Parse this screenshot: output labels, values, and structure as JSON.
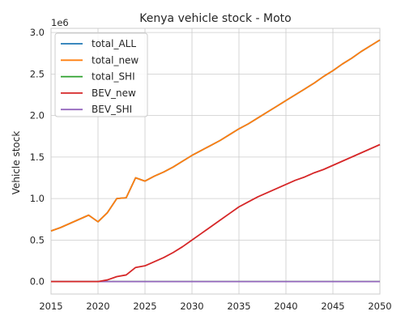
{
  "chart_data": {
    "type": "line",
    "title": "Kenya vehicle stock - Moto",
    "xlabel": "",
    "ylabel": "Vehicle stock",
    "y_offset_label": "1e6",
    "xlim": [
      2015,
      2050
    ],
    "ylim": [
      -0.15,
      3.05
    ],
    "y_scale": 1000000,
    "x_ticks": [
      2015,
      2020,
      2025,
      2030,
      2035,
      2040,
      2045,
      2050
    ],
    "y_ticks": [
      0.0,
      0.5,
      1.0,
      1.5,
      2.0,
      2.5,
      3.0
    ],
    "y_tick_labels": [
      "0.0",
      "0.5",
      "1.0",
      "1.5",
      "2.0",
      "2.5",
      "3.0"
    ],
    "grid": true,
    "legend_position": "top-left",
    "x": [
      2015,
      2016,
      2017,
      2018,
      2019,
      2020,
      2021,
      2022,
      2023,
      2024,
      2025,
      2026,
      2027,
      2028,
      2029,
      2030,
      2031,
      2032,
      2033,
      2034,
      2035,
      2036,
      2037,
      2038,
      2039,
      2040,
      2041,
      2042,
      2043,
      2044,
      2045,
      2046,
      2047,
      2048,
      2049,
      2050
    ],
    "series": [
      {
        "name": "total_ALL",
        "color": "#1f77b4",
        "values": [
          0.61,
          0.65,
          0.7,
          0.75,
          0.8,
          0.72,
          0.83,
          1.0,
          1.01,
          1.25,
          1.21,
          1.27,
          1.32,
          1.38,
          1.45,
          1.52,
          1.58,
          1.64,
          1.7,
          1.77,
          1.84,
          1.9,
          1.97,
          2.04,
          2.11,
          2.18,
          2.25,
          2.32,
          2.39,
          2.47,
          2.54,
          2.62,
          2.69,
          2.77,
          2.84,
          2.91
        ]
      },
      {
        "name": "total_new",
        "color": "#ff7f0e",
        "values": [
          0.61,
          0.65,
          0.7,
          0.75,
          0.8,
          0.72,
          0.83,
          1.0,
          1.01,
          1.25,
          1.21,
          1.27,
          1.32,
          1.38,
          1.45,
          1.52,
          1.58,
          1.64,
          1.7,
          1.77,
          1.84,
          1.9,
          1.97,
          2.04,
          2.11,
          2.18,
          2.25,
          2.32,
          2.39,
          2.47,
          2.54,
          2.62,
          2.69,
          2.77,
          2.84,
          2.91
        ]
      },
      {
        "name": "total_SHI",
        "color": "#2ca02c",
        "values": [
          0.0,
          0.0,
          0.0,
          0.0,
          0.0,
          0.0,
          0.0,
          0.0,
          0.0,
          0.0,
          0.0,
          0.0,
          0.0,
          0.0,
          0.0,
          0.0,
          0.0,
          0.0,
          0.0,
          0.0,
          0.0,
          0.0,
          0.0,
          0.0,
          0.0,
          0.0,
          0.0,
          0.0,
          0.0,
          0.0,
          0.0,
          0.0,
          0.0,
          0.0,
          0.0,
          0.0
        ]
      },
      {
        "name": "BEV_new",
        "color": "#d62728",
        "values": [
          0.0,
          0.0,
          0.0,
          0.0,
          0.0,
          0.0,
          0.02,
          0.06,
          0.08,
          0.17,
          0.19,
          0.24,
          0.29,
          0.35,
          0.42,
          0.5,
          0.58,
          0.66,
          0.74,
          0.82,
          0.9,
          0.96,
          1.02,
          1.07,
          1.12,
          1.17,
          1.22,
          1.26,
          1.31,
          1.35,
          1.4,
          1.45,
          1.5,
          1.55,
          1.6,
          1.65
        ]
      },
      {
        "name": "BEV_SHI",
        "color": "#9467bd",
        "values": [
          0.0,
          0.0,
          0.0,
          0.0,
          0.0,
          0.0,
          0.0,
          0.0,
          0.0,
          0.0,
          0.0,
          0.0,
          0.0,
          0.0,
          0.0,
          0.0,
          0.0,
          0.0,
          0.0,
          0.0,
          0.0,
          0.0,
          0.0,
          0.0,
          0.0,
          0.0,
          0.0,
          0.0,
          0.0,
          0.0,
          0.0,
          0.0,
          0.0,
          0.0,
          0.0,
          0.0
        ]
      }
    ]
  }
}
